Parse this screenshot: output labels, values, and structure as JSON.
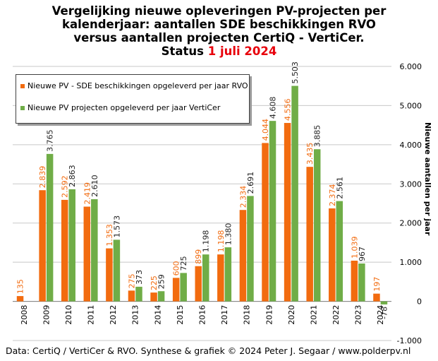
{
  "title": {
    "line1": "Vergelijking  nieuwe  opleveringen  PV-projecten per",
    "line2": "kalenderjaar: aantallen  SDE  beschikkingen  RVO",
    "line3": "versus  aantallen  projecten  CertiQ  -  VertiCer.",
    "line4_prefix": "Status ",
    "line4_date": "1 juli  2024"
  },
  "footer": "Data: CertiQ / VertiCer & RVO. Synthese & grafiek © 2024 Peter J. Segaar / www.polderpv.nl",
  "colors": {
    "rvo": "#f26b0f",
    "verticer": "#70ad47",
    "date_red": "#e8000b",
    "grid": "#c8c8c8"
  },
  "chart_data": {
    "type": "bar",
    "categories": [
      "2008",
      "2009",
      "2010",
      "2011",
      "2012",
      "2013",
      "2014",
      "2015",
      "2016",
      "2017",
      "2018",
      "2019",
      "2020",
      "2021",
      "2022",
      "2023",
      "2024"
    ],
    "series": [
      {
        "name": "Nieuwe PV - SDE beschikkingen opgeleverd per jaar RVO",
        "values": [
          135,
          2839,
          2592,
          2419,
          1353,
          275,
          225,
          600,
          899,
          1198,
          2334,
          4044,
          4556,
          3435,
          2374,
          1039,
          197
        ],
        "labels": [
          "135",
          "2.839",
          "2.592",
          "2.419",
          "1.353",
          "275",
          "225",
          "600",
          "899",
          "1.198",
          "2.334",
          "4.044",
          "4.556",
          "3.435",
          "2.374",
          "1.039",
          "197"
        ]
      },
      {
        "name": "Nieuwe PV projecten opgeleverd per jaar VertiCer",
        "values": [
          null,
          3765,
          2863,
          2610,
          1573,
          373,
          259,
          725,
          1198,
          1380,
          2691,
          4608,
          5503,
          3885,
          2561,
          967,
          -78
        ],
        "labels": [
          "",
          "3.765",
          "2.863",
          "2.610",
          "1.573",
          "373",
          "259",
          "725",
          "1.198",
          "1.380",
          "2.691",
          "4.608",
          "5.503",
          "3.885",
          "2.561",
          "967",
          "-78"
        ]
      }
    ],
    "ylabel": "Nieuwe aantallen per jaar",
    "ylim": [
      -1000,
      6000
    ],
    "yticks": [
      -1000,
      0,
      1000,
      2000,
      3000,
      4000,
      5000,
      6000
    ],
    "ytick_labels": [
      "-1.000",
      "0",
      "1.000",
      "2.000",
      "3.000",
      "4.000",
      "5.000",
      "6.000"
    ],
    "grid": true,
    "legend": "top-left"
  }
}
